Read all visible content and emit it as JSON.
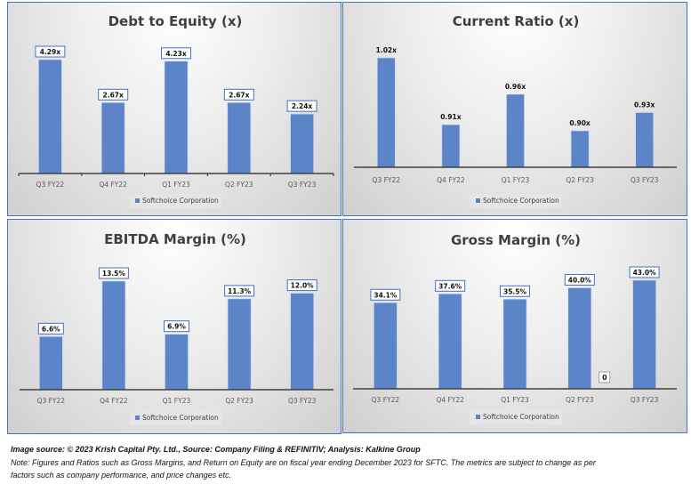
{
  "colors": {
    "bar": "#5b84c9",
    "border": "#4472c4",
    "axis": "#404040"
  },
  "chart_data": [
    {
      "type": "bar",
      "title": "Debt to Equity (x)",
      "categories": [
        "Q3 FY22",
        "Q4 FY22",
        "Q1 FY23",
        "Q2 FY23",
        "Q3 FY23"
      ],
      "series": [
        {
          "name": "Softchoice Corporation",
          "values": [
            4.29,
            2.67,
            4.23,
            2.67,
            2.24
          ]
        }
      ],
      "labels": [
        "4.29x",
        "2.67x",
        "4.23x",
        "2.67x",
        "2.24x"
      ],
      "label_boxed": true,
      "ylim": [
        0,
        4.8
      ],
      "legend": "bottom"
    },
    {
      "type": "bar",
      "title": "Current Ratio (x)",
      "categories": [
        "Q3 FY22",
        "Q4 FY22",
        "Q1 FY23",
        "Q2 FY23",
        "Q3 FY23"
      ],
      "series": [
        {
          "name": "Softchoice Corporation",
          "values": [
            1.02,
            0.91,
            0.96,
            0.9,
            0.93
          ]
        }
      ],
      "labels": [
        "1.02x",
        "0.91x",
        "0.96x",
        "0.90x",
        "0.93x"
      ],
      "label_boxed": false,
      "ylim": [
        0.84,
        1.07
      ],
      "legend": "bottom"
    },
    {
      "type": "bar",
      "title": "EBITDA Margin (%)",
      "categories": [
        "Q3 FY22",
        "Q4 FY22",
        "Q1 FY23",
        "Q2 FY23",
        "Q3 FY23"
      ],
      "series": [
        {
          "name": "Softchoice Corporation",
          "values": [
            6.6,
            13.5,
            6.9,
            11.3,
            12.0
          ]
        }
      ],
      "labels": [
        "6.6%",
        "13.5%",
        "6.9%",
        "11.3%",
        "12.0%"
      ],
      "label_boxed": true,
      "ylim": [
        0,
        15.7
      ],
      "legend": "bottom"
    },
    {
      "type": "bar",
      "title": "Gross Margin (%)",
      "categories": [
        "Q3 FY22",
        "Q4 FY22",
        "Q1 FY23",
        "Q2 FY23",
        "Q3 FY23"
      ],
      "series": [
        {
          "name": "Softchoice Corporation",
          "values": [
            34.1,
            37.6,
            35.5,
            40.0,
            43.0
          ]
        }
      ],
      "labels": [
        "34.1%",
        "37.6%",
        "35.5%",
        "40.0%",
        "43.0%"
      ],
      "label_boxed": true,
      "extra_label": "0",
      "ylim": [
        0,
        46.5
      ],
      "legend": "bottom"
    }
  ],
  "footer": {
    "source": "Image source: © 2023 Krish Capital Pty. Ltd., Source: Company Filing & REFINITIV; Analysis: Kalkine Group",
    "note_line1": "Note: Figures and Ratios such as  Gross Margins, and Return on Equity are on fiscal year ending  December  2023  for SFTC. The metrics are subject to change as per",
    "note_line2": "factors such as company performance, and price changes etc."
  }
}
